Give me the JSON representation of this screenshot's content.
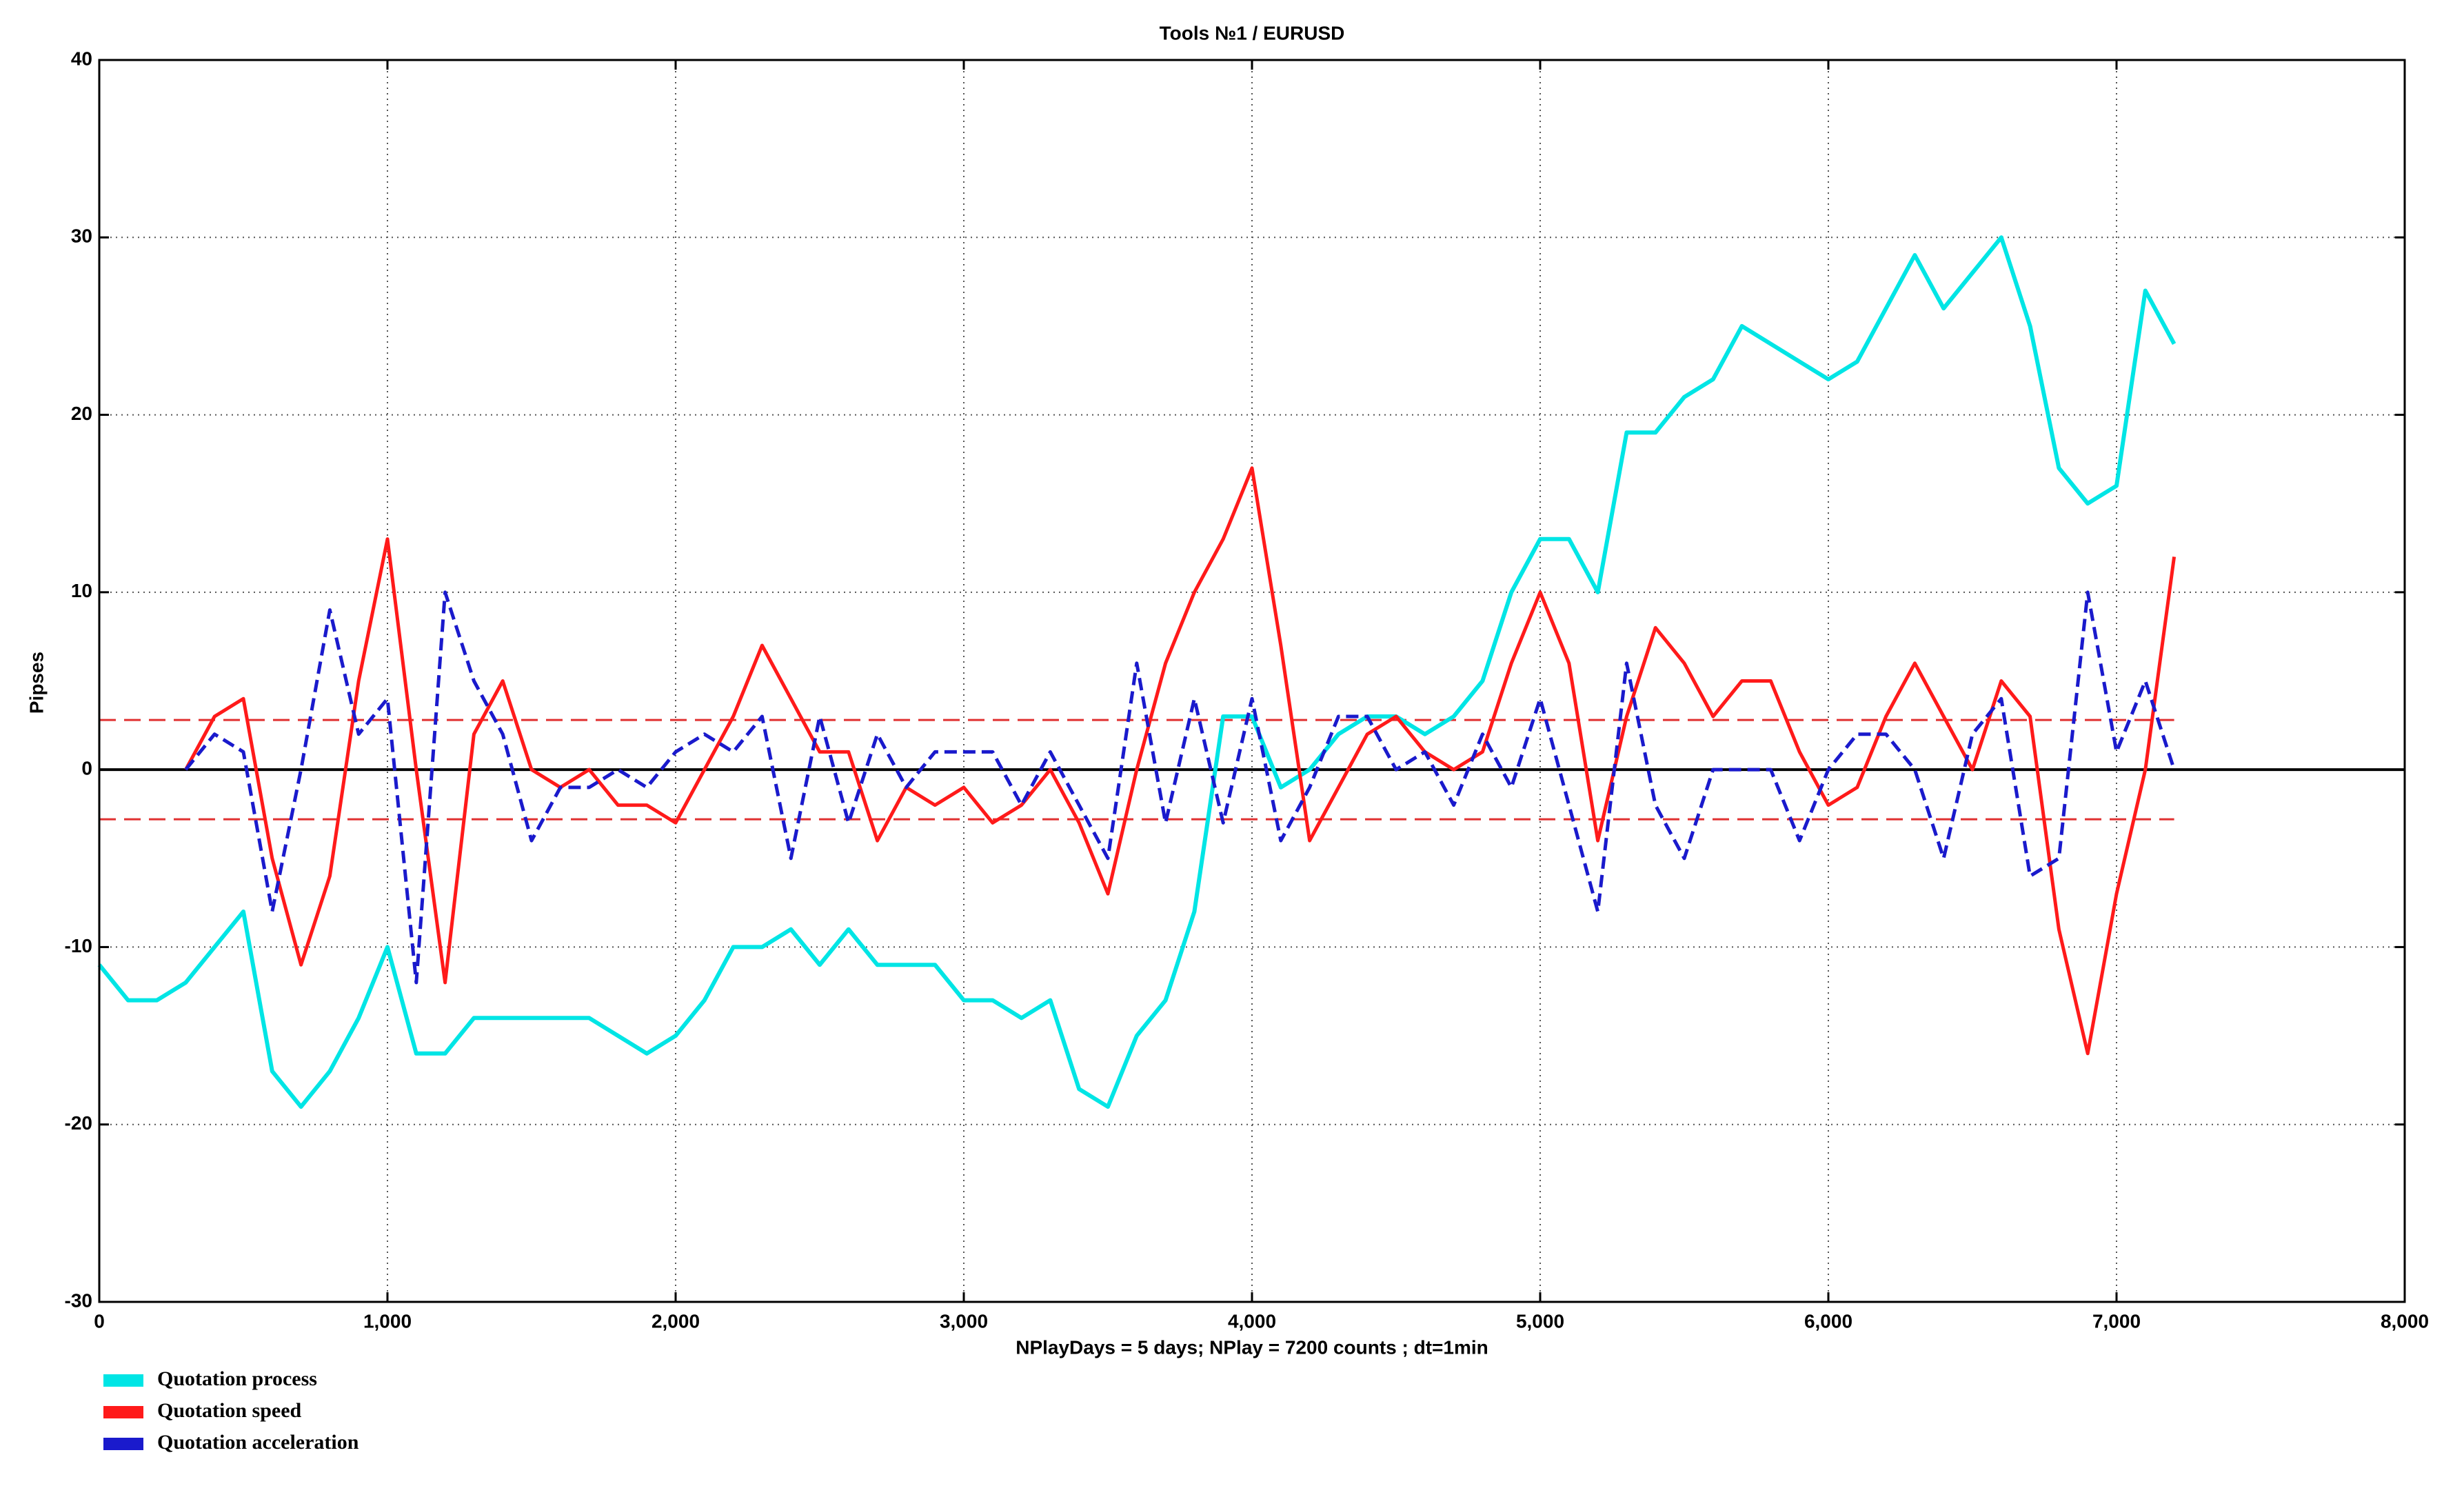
{
  "chart_data": {
    "type": "line",
    "title": "Tools  №1 / EURUSD",
    "x_label": "NPlayDays = 5 days;  NPlay = 7200 counts ;      dt=1min",
    "y_label": "Pipses",
    "xlim": [
      0,
      8000
    ],
    "ylim": [
      -30,
      40
    ],
    "xticks": [
      0,
      {
        "value": 1000,
        "label": "1,000"
      },
      {
        "value": 2000,
        "label": "2,000"
      },
      {
        "value": 3000,
        "label": "3,000"
      },
      {
        "value": 4000,
        "label": "4,000"
      },
      {
        "value": 5000,
        "label": "5,000"
      },
      {
        "value": 6000,
        "label": "6,000"
      },
      {
        "value": 7000,
        "label": "7,000"
      },
      {
        "value": 8000,
        "label": "8,000"
      }
    ],
    "yticks": [
      -30,
      -20,
      -10,
      0,
      10,
      20,
      30,
      40
    ],
    "grid": true,
    "legend": "bottom-left",
    "reference_lines": [
      {
        "value": 0,
        "color": "#000000",
        "dashed": false
      },
      {
        "value": 2.8,
        "color": "#e03030",
        "dashed": true
      },
      {
        "value": -2.8,
        "color": "#e03030",
        "dashed": true
      }
    ],
    "x": [
      0,
      100,
      200,
      300,
      400,
      500,
      600,
      700,
      800,
      900,
      1000,
      1100,
      1200,
      1300,
      1400,
      1500,
      1600,
      1700,
      1800,
      1900,
      2000,
      2100,
      2200,
      2300,
      2400,
      2500,
      2600,
      2700,
      2800,
      2900,
      3000,
      3100,
      3200,
      3300,
      3400,
      3500,
      3600,
      3700,
      3800,
      3900,
      4000,
      4100,
      4200,
      4300,
      4400,
      4500,
      4600,
      4700,
      4800,
      4900,
      5000,
      5100,
      5200,
      5300,
      5400,
      5500,
      5600,
      5700,
      5800,
      5900,
      6000,
      6100,
      6200,
      6300,
      6400,
      6500,
      6600,
      6700,
      6800,
      6900,
      7000,
      7100,
      7200
    ],
    "series": [
      {
        "name": "Quotation process",
        "color": "#00e5e5",
        "dashed": false,
        "values": [
          -11,
          -13,
          -13,
          -12,
          -10,
          -8,
          -17,
          -19,
          -17,
          -14,
          -10,
          -16,
          -16,
          -14,
          -14,
          -14,
          -14,
          -14,
          -15,
          -16,
          -15,
          -13,
          -10,
          -10,
          -9,
          -11,
          -9,
          -11,
          -11,
          -11,
          -13,
          -13,
          -14,
          -13,
          -18,
          -19,
          -15,
          -13,
          -8,
          3,
          3,
          -1,
          0,
          2,
          3,
          3,
          2,
          3,
          5,
          10,
          13,
          13,
          10,
          19,
          19,
          21,
          22,
          25,
          24,
          23,
          22,
          23,
          26,
          29,
          26,
          28,
          30,
          25,
          17,
          15,
          16,
          27,
          24
        ]
      },
      {
        "name": "Quotation speed",
        "color": "#ff1a1a",
        "dashed": false,
        "values": [
          null,
          null,
          null,
          0,
          3,
          4,
          -5,
          -11,
          -6,
          5,
          13,
          0,
          -12,
          2,
          5,
          0,
          -1,
          0,
          -2,
          -2,
          -3,
          0,
          3,
          7,
          4,
          1,
          1,
          -4,
          -1,
          -2,
          -1,
          -3,
          -2,
          0,
          -3,
          -7,
          0,
          6,
          10,
          13,
          17,
          7,
          -4,
          -1,
          2,
          3,
          1,
          0,
          1,
          6,
          10,
          6,
          -4,
          3,
          8,
          6,
          3,
          5,
          5,
          1,
          -2,
          -1,
          3,
          6,
          3,
          0,
          5,
          3,
          -9,
          -16,
          -7,
          0,
          12
        ]
      },
      {
        "name": "Quotation acceleration",
        "color": "#1a1acc",
        "dashed": true,
        "values": [
          null,
          null,
          null,
          0,
          2,
          1,
          -8,
          0,
          9,
          2,
          4,
          -12,
          10,
          5,
          2,
          -4,
          -1,
          -1,
          0,
          -1,
          1,
          2,
          1,
          3,
          -5,
          3,
          -3,
          2,
          -1,
          1,
          1,
          1,
          -2,
          1,
          -2,
          -5,
          6,
          -3,
          4,
          -3,
          4,
          -4,
          -1,
          3,
          3,
          0,
          1,
          -2,
          2,
          -1,
          4,
          -2,
          -8,
          6,
          -2,
          -5,
          0,
          0,
          0,
          -4,
          0,
          2,
          2,
          0,
          -5,
          2,
          4,
          -6,
          -5,
          10,
          1,
          5,
          0
        ]
      }
    ]
  }
}
